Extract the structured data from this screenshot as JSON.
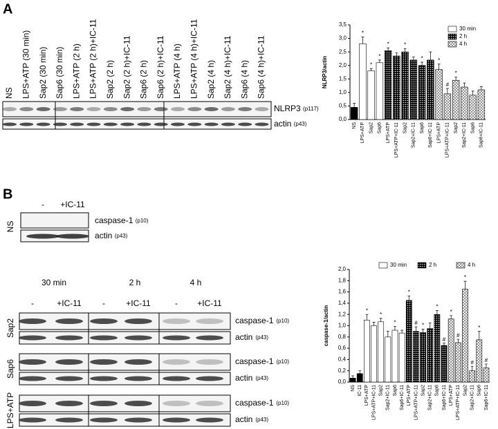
{
  "figure": {
    "panel_a": "A",
    "panel_b": "B",
    "blot_a": {
      "lanes": [
        "NS",
        "LPS+ATP (30 min)",
        "Sap2 (30 min)",
        "Sap6 (30 min)",
        "LPS+ATP (2 h)",
        "LPS+ATP (2 h)+IC-11",
        "Sap2 (2 h)",
        "Sap2 (2 h)+IC-11",
        "Sap6 (2 h)",
        "Sap6 (2 h)+IC-11",
        "LPS+ATP (4 h)",
        "LPS+ATP (4 h)+IC-11",
        "Sap2 (4 h)",
        "Sap2 (4 h)+IC-11",
        "Sap6 (4 h)",
        "Sap6 (4 h)+IC-11"
      ],
      "band1": "NLRP3",
      "band1_size": "(p117)",
      "band2": "actin",
      "band2_size": "(p43)"
    },
    "blot_b_ns": {
      "row": "NS",
      "lane1": "-",
      "lane2": "+IC-11",
      "band1": "caspase-1",
      "band1_size": "(p10)",
      "band2": "actin",
      "band2_size": "(p43)"
    },
    "blot_b": {
      "times": [
        "30 min",
        "2 h",
        "4 h"
      ],
      "lanes": [
        "-",
        "+IC-11",
        "-",
        "+IC-11",
        "-",
        "+IC-11"
      ],
      "rows": [
        "Sap2",
        "Sap6",
        "LPS+ATP"
      ],
      "band1": "caspase-1",
      "band1_size": "(p10)",
      "band2": "actin",
      "band2_size": "(p43)"
    }
  },
  "chart_data": [
    {
      "type": "bar",
      "ylabel": "NLRP3/actin",
      "categories": [
        "NS",
        "LPS+ATP",
        "Sap2",
        "Sap6",
        "LPS+ATP",
        "LPS+ATP+IC-11",
        "Sap2",
        "Sap2+IC-11",
        "Sap6",
        "Sap6+IC-11",
        "LPS+ATP",
        "LPS+ATP+IC-11",
        "Sap2",
        "Sap2+IC-11",
        "Sap6",
        "Sap6+IC-11"
      ],
      "series": [
        {
          "color": "#000000",
          "pattern": "solid",
          "values": [
            0.45,
            null,
            null,
            null,
            null,
            null,
            null,
            null,
            null,
            null,
            null,
            null,
            null,
            null,
            null,
            null
          ]
        },
        {
          "name": "30 min",
          "color": "#ffffff",
          "pattern": "none",
          "values": [
            null,
            2.8,
            1.8,
            2.1,
            null,
            null,
            null,
            null,
            null,
            null,
            null,
            null,
            null,
            null,
            null,
            null
          ]
        },
        {
          "name": "2 h",
          "color": "#000000",
          "pattern": "dots",
          "values": [
            null,
            null,
            null,
            null,
            2.55,
            2.35,
            2.5,
            2.2,
            2.0,
            2.2,
            null,
            null,
            null,
            null,
            null,
            null
          ]
        },
        {
          "name": "4 h",
          "color": "#000000",
          "pattern": "cross",
          "values": [
            null,
            null,
            null,
            null,
            null,
            null,
            null,
            null,
            null,
            null,
            1.85,
            0.95,
            1.45,
            1.2,
            0.9,
            1.1
          ]
        }
      ],
      "errors": [
        0.15,
        0.25,
        0.08,
        0.1,
        0.1,
        0.12,
        0.12,
        0.12,
        0.12,
        0.3,
        0.2,
        0.2,
        0.12,
        0.15,
        0.15,
        0.12
      ],
      "annotations": [
        null,
        "*",
        "*",
        "*",
        "*",
        null,
        "*",
        null,
        "*",
        null,
        "*",
        "#",
        "*",
        null,
        null,
        null
      ],
      "ylim": [
        0,
        3.5
      ],
      "yticks": [
        {
          "value": 0,
          "label": "0,0"
        },
        {
          "value": 0.5,
          "label": "0,5"
        },
        {
          "value": 1,
          "label": "1,0"
        },
        {
          "value": 1.5,
          "label": "1,5"
        },
        {
          "value": 2,
          "label": "2,0"
        },
        {
          "value": 2.5,
          "label": "2,5"
        },
        {
          "value": 3,
          "label": "3,0"
        },
        {
          "value": 3.5,
          "label": "3,5"
        }
      ],
      "legend": "upper right"
    },
    {
      "type": "bar",
      "ylabel": "caspase-1/actin",
      "categories": [
        "NS",
        "IC-11",
        "LPS+ATP",
        "LPS+ATP+IC-11",
        "Sap2",
        "Sap2+IC-11",
        "Sap6",
        "Sap6+IC-11",
        "LPS+ATP",
        "LPS+ATP+IC-11",
        "Sap2",
        "Sap2+IC-11",
        "Sap6",
        "Sap6+IC-11",
        "LPS+ATP",
        "LPS+ATP+IC-11",
        "Sap2",
        "Sap2+IC-11",
        "Sap6",
        "Sap6+IC-11"
      ],
      "series": [
        {
          "color": "#000000",
          "pattern": "solid",
          "values": [
            0.07,
            0.15,
            null,
            null,
            null,
            null,
            null,
            null,
            null,
            null,
            null,
            null,
            null,
            null,
            null,
            null,
            null,
            null,
            null,
            null
          ]
        },
        {
          "name": "30 min",
          "color": "#ffffff",
          "pattern": "none",
          "values": [
            null,
            null,
            1.1,
            1.0,
            1.07,
            0.8,
            0.92,
            0.87,
            null,
            null,
            null,
            null,
            null,
            null,
            null,
            null,
            null,
            null,
            null,
            null
          ]
        },
        {
          "name": "2 h",
          "color": "#000000",
          "pattern": "dots",
          "values": [
            null,
            null,
            null,
            null,
            null,
            null,
            null,
            null,
            1.45,
            0.9,
            0.88,
            0.95,
            1.2,
            0.65,
            null,
            null,
            null,
            null,
            null,
            null
          ]
        },
        {
          "name": "4 h",
          "color": "#000000",
          "pattern": "cross",
          "values": [
            null,
            null,
            null,
            null,
            null,
            null,
            null,
            null,
            null,
            null,
            null,
            null,
            null,
            null,
            1.12,
            0.7,
            1.65,
            0.2,
            0.75,
            0.25
          ]
        }
      ],
      "errors": [
        0.04,
        0.05,
        0.1,
        0.06,
        0.06,
        0.1,
        0.07,
        0.05,
        0.08,
        0.08,
        0.06,
        0.1,
        0.07,
        0.04,
        0.06,
        0.06,
        0.14,
        0.08,
        0.15,
        0.07
      ],
      "annotations": [
        null,
        null,
        "*",
        null,
        "*",
        null,
        "*",
        null,
        "*",
        "#",
        "*",
        null,
        "*",
        "#",
        "*",
        "#",
        "*",
        "#",
        "*",
        "#"
      ],
      "ylim": [
        0,
        2
      ],
      "yticks": [
        {
          "value": 0,
          "label": "0,0"
        },
        {
          "value": 0.2,
          "label": "0,2"
        },
        {
          "value": 0.4,
          "label": "0,4"
        },
        {
          "value": 0.6,
          "label": "0,6"
        },
        {
          "value": 0.8,
          "label": "0,8"
        },
        {
          "value": 1,
          "label": "1,0"
        },
        {
          "value": 1.2,
          "label": "1,2"
        },
        {
          "value": 1.4,
          "label": "1,4"
        },
        {
          "value": 1.6,
          "label": "1,6"
        },
        {
          "value": 1.8,
          "label": "1,8"
        },
        {
          "value": 2,
          "label": "2,0"
        }
      ],
      "legend": "upper center"
    }
  ]
}
